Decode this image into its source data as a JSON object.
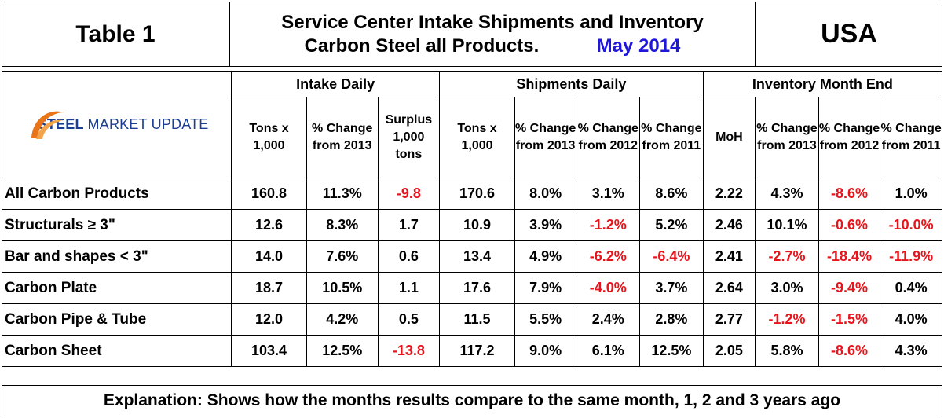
{
  "header": {
    "table_label": "Table 1",
    "title_line1": "Service Center Intake Shipments and Inventory",
    "title_line2": "Carbon Steel all Products.",
    "title_date": "May 2014",
    "region": "USA",
    "accent_color": "#1f18d8"
  },
  "logo": {
    "word_bold": "STEEL",
    "word_rest": "MARKET UPDATE",
    "brand_color": "#1c3f94",
    "swoosh_color": "#e8751a"
  },
  "groups": [
    "Intake Daily",
    "Shipments Daily",
    "Inventory Month End"
  ],
  "columns": [
    "Tons x 1,000",
    "% Change from 2013",
    "Surplus 1,000 tons",
    "Tons x 1,000",
    "% Change from 2013",
    "% Change from 2012",
    "% Change from 2011",
    "MoH",
    "% Change from 2013",
    "% Change from 2012",
    "% Change from 2011"
  ],
  "rows": [
    {
      "label": "All Carbon Products",
      "values": [
        "160.8",
        "11.3%",
        "-9.8",
        "170.6",
        "8.0%",
        "3.1%",
        "8.6%",
        "2.22",
        "4.3%",
        "-8.6%",
        "1.0%"
      ]
    },
    {
      "label": "Structurals ≥ 3\"",
      "values": [
        "12.6",
        "8.3%",
        "1.7",
        "10.9",
        "3.9%",
        "-1.2%",
        "5.2%",
        "2.46",
        "10.1%",
        "-0.6%",
        "-10.0%"
      ]
    },
    {
      "label": "Bar and shapes < 3\"",
      "values": [
        "14.0",
        "7.6%",
        "0.6",
        "13.4",
        "4.9%",
        "-6.2%",
        "-6.4%",
        "2.41",
        "-2.7%",
        "-18.4%",
        "-11.9%"
      ]
    },
    {
      "label": "Carbon Plate",
      "values": [
        "18.7",
        "10.5%",
        "1.1",
        "17.6",
        "7.9%",
        "-4.0%",
        "3.7%",
        "2.64",
        "3.0%",
        "-9.4%",
        "0.4%"
      ]
    },
    {
      "label": "Carbon Pipe & Tube",
      "values": [
        "12.0",
        "4.2%",
        "0.5",
        "11.5",
        "5.5%",
        "2.4%",
        "2.8%",
        "2.77",
        "-1.2%",
        "-1.5%",
        "4.0%"
      ]
    },
    {
      "label": "Carbon Sheet",
      "values": [
        "103.4",
        "12.5%",
        "-13.8",
        "117.2",
        "9.0%",
        "6.1%",
        "12.5%",
        "2.05",
        "5.8%",
        "-8.6%",
        "4.3%"
      ]
    }
  ],
  "negative_color": "#e8141c",
  "explanation": "Explanation: Shows how the months results compare to the same month, 1, 2 and 3 years ago"
}
